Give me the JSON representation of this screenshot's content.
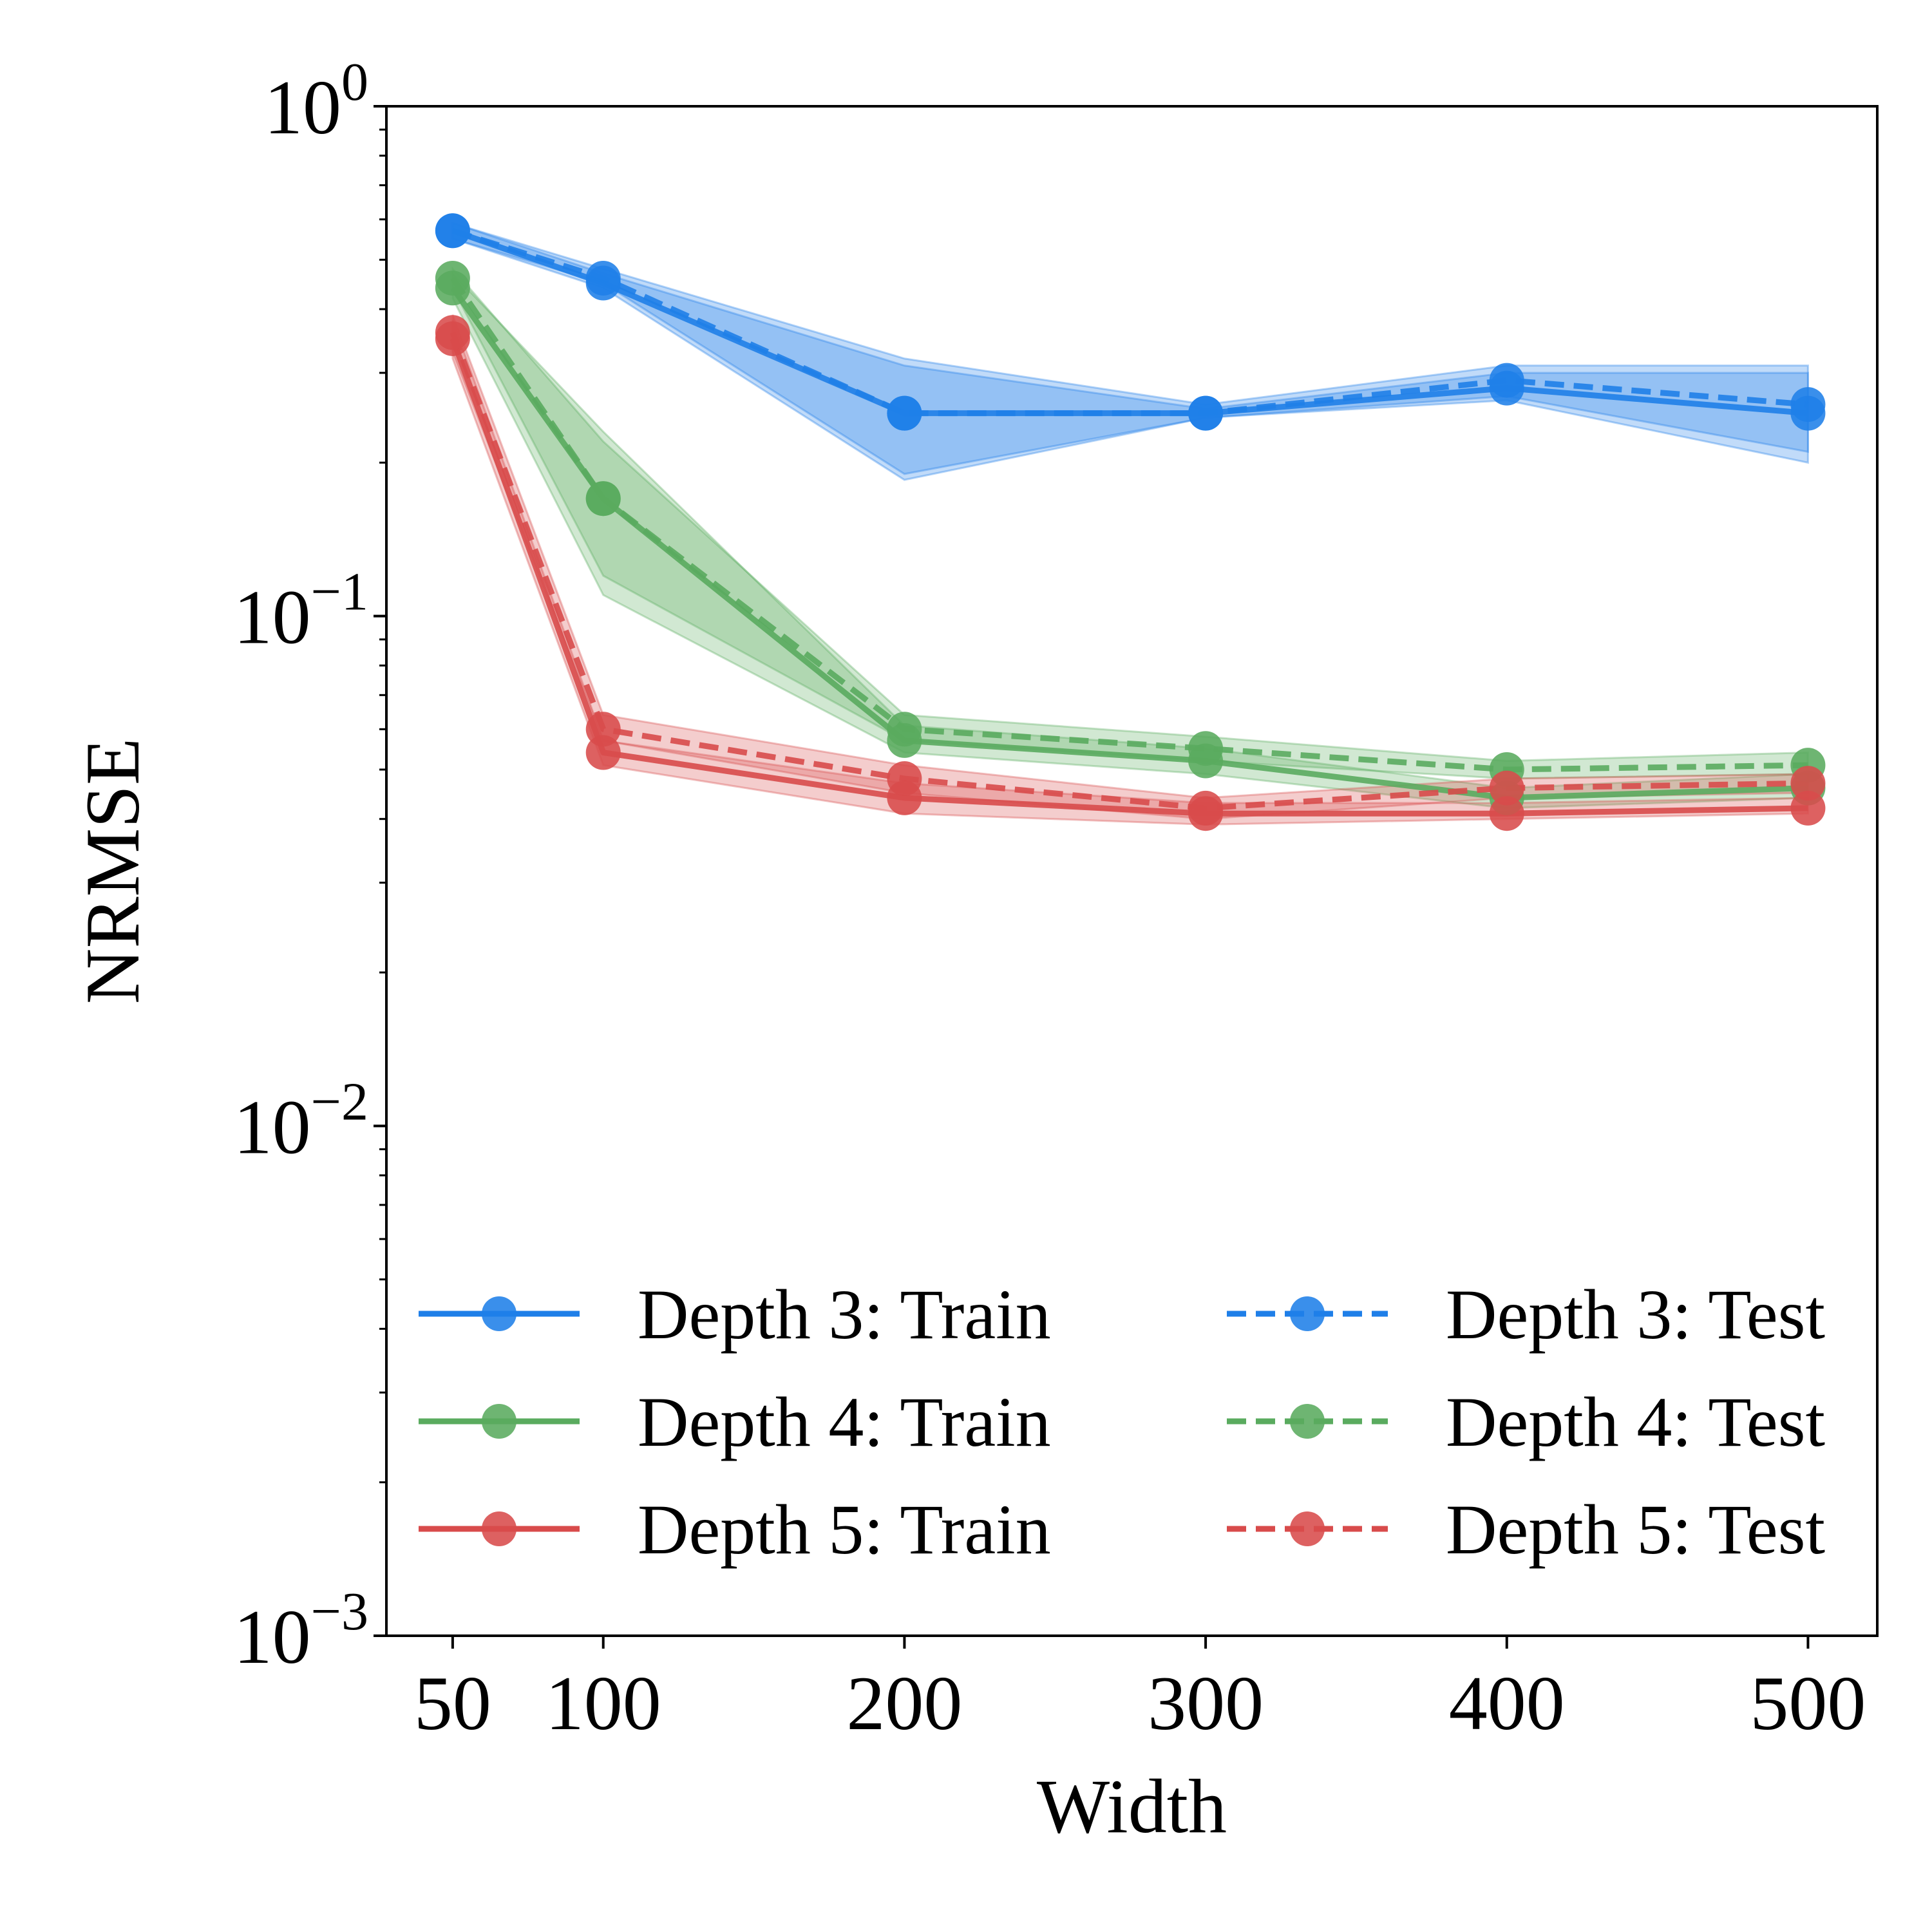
{
  "chart_data": {
    "type": "line",
    "xlabel": "Width",
    "ylabel": "NRMSE",
    "yscale": "log",
    "ylim": [
      0.001,
      1
    ],
    "xlim": [
      28,
      523
    ],
    "grid": false,
    "legend_position": "lower-center, two columns",
    "x": [
      50,
      100,
      200,
      300,
      400,
      500
    ],
    "x_tick_labels": [
      "50",
      "100",
      "200",
      "300",
      "400",
      "500"
    ],
    "y_ticks": [
      {
        "value": 1,
        "base": "10",
        "exp": "0"
      },
      {
        "value": 0.1,
        "base": "10",
        "exp": "−1"
      },
      {
        "value": 0.01,
        "base": "10",
        "exp": "−2"
      },
      {
        "value": 0.001,
        "base": "10",
        "exp": "−3"
      }
    ],
    "series": [
      {
        "name": "Depth 3: Train",
        "color": "#1f7fe8",
        "dash": "solid",
        "values": [
          0.57,
          0.45,
          0.25,
          0.25,
          0.28,
          0.25
        ],
        "band_low": [
          0.55,
          0.44,
          0.185,
          0.245,
          0.265,
          0.2
        ],
        "band_high": [
          0.59,
          0.47,
          0.31,
          0.255,
          0.3,
          0.3
        ]
      },
      {
        "name": "Depth 4: Train",
        "color": "#5aab5f",
        "dash": "solid",
        "values": [
          0.44,
          0.17,
          0.057,
          0.052,
          0.044,
          0.046
        ],
        "band_low": [
          0.42,
          0.11,
          0.054,
          0.049,
          0.042,
          0.044
        ],
        "band_high": [
          0.47,
          0.23,
          0.061,
          0.055,
          0.046,
          0.049
        ]
      },
      {
        "name": "Depth 5: Train",
        "color": "#d84b4b",
        "dash": "solid",
        "values": [
          0.35,
          0.054,
          0.044,
          0.041,
          0.041,
          0.042
        ],
        "band_low": [
          0.32,
          0.051,
          0.041,
          0.039,
          0.04,
          0.041
        ],
        "band_high": [
          0.38,
          0.057,
          0.047,
          0.043,
          0.043,
          0.044
        ]
      },
      {
        "name": "Depth 3: Test",
        "color": "#1f7fe8",
        "dash": "dashed",
        "values": [
          0.57,
          0.46,
          0.25,
          0.25,
          0.29,
          0.26
        ],
        "band_low": [
          0.55,
          0.45,
          0.19,
          0.245,
          0.27,
          0.21
        ],
        "band_high": [
          0.59,
          0.48,
          0.32,
          0.26,
          0.31,
          0.31
        ]
      },
      {
        "name": "Depth 4: Test",
        "color": "#5aab5f",
        "dash": "dashed",
        "values": [
          0.46,
          0.17,
          0.06,
          0.055,
          0.05,
          0.051
        ],
        "band_low": [
          0.44,
          0.12,
          0.057,
          0.052,
          0.048,
          0.049
        ],
        "band_high": [
          0.48,
          0.22,
          0.064,
          0.058,
          0.052,
          0.054
        ]
      },
      {
        "name": "Depth 5: Test",
        "color": "#d84b4b",
        "dash": "dashed",
        "values": [
          0.36,
          0.06,
          0.048,
          0.042,
          0.046,
          0.047
        ],
        "band_low": [
          0.33,
          0.057,
          0.045,
          0.04,
          0.044,
          0.045
        ],
        "band_high": [
          0.39,
          0.064,
          0.051,
          0.044,
          0.048,
          0.049
        ]
      }
    ]
  }
}
